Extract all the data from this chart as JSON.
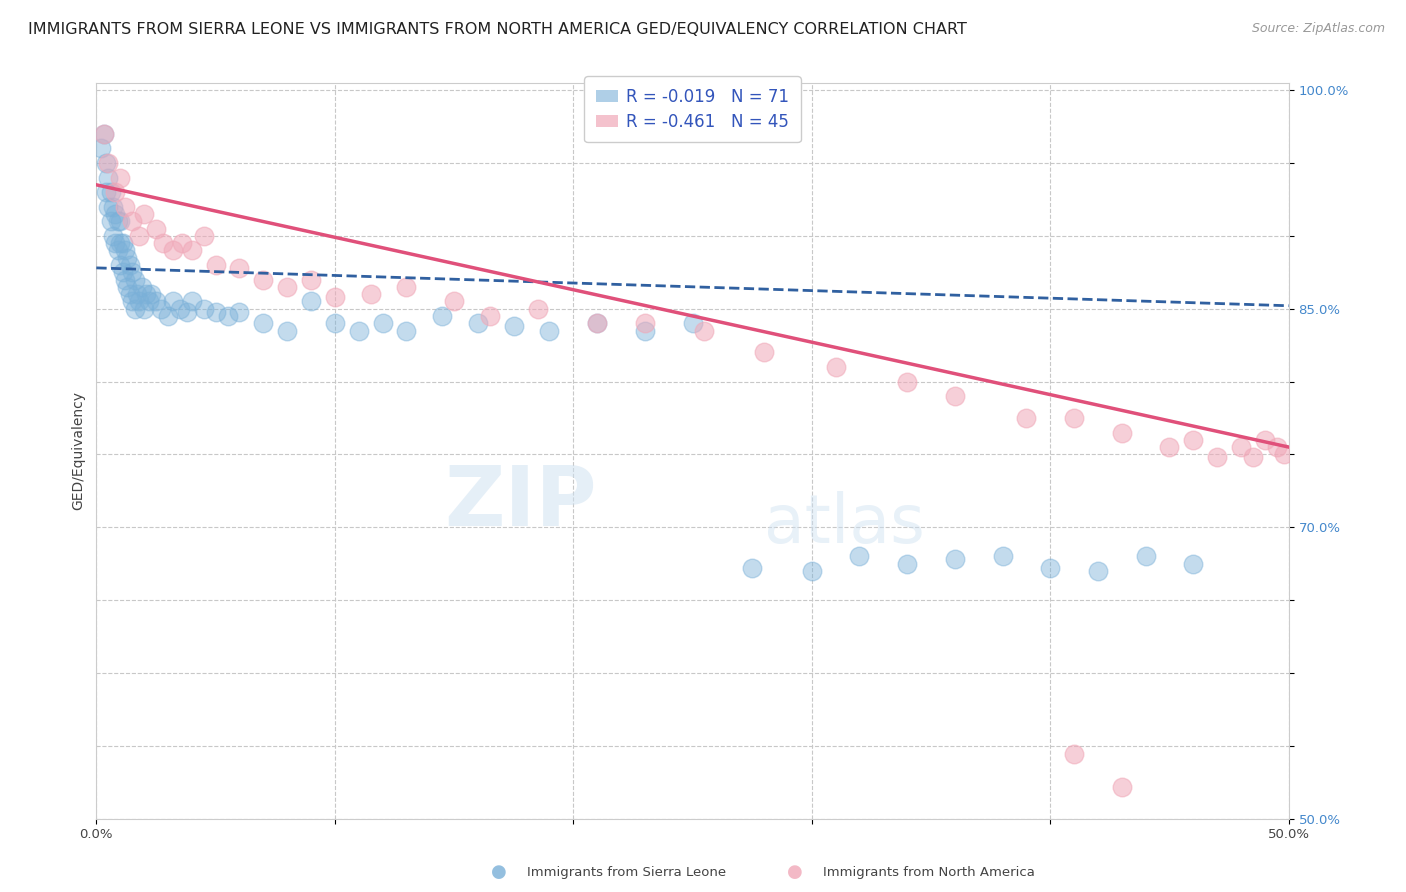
{
  "title": "IMMIGRANTS FROM SIERRA LEONE VS IMMIGRANTS FROM NORTH AMERICA GED/EQUIVALENCY CORRELATION CHART",
  "source": "Source: ZipAtlas.com",
  "ylabel": "GED/Equivalency",
  "xlim": [
    0.0,
    0.5
  ],
  "ylim": [
    0.5,
    1.005
  ],
  "xtick_positions": [
    0.0,
    0.1,
    0.2,
    0.3,
    0.4,
    0.5
  ],
  "xtick_labels": [
    "0.0%",
    "",
    "",
    "",
    "",
    "50.0%"
  ],
  "ytick_positions": [
    0.5,
    0.55,
    0.6,
    0.65,
    0.7,
    0.75,
    0.8,
    0.85,
    0.9,
    0.95,
    1.0
  ],
  "ytick_labels": [
    "50.0%",
    "",
    "",
    "",
    "70.0%",
    "",
    "",
    "85.0%",
    "",
    "",
    "100.0%"
  ],
  "legend_R_blue": "-0.019",
  "legend_N_blue": "71",
  "legend_R_pink": "-0.461",
  "legend_N_pink": "45",
  "blue_scatter_x": [
    0.002,
    0.003,
    0.004,
    0.004,
    0.005,
    0.005,
    0.006,
    0.006,
    0.007,
    0.007,
    0.008,
    0.008,
    0.009,
    0.009,
    0.01,
    0.01,
    0.01,
    0.011,
    0.011,
    0.012,
    0.012,
    0.013,
    0.013,
    0.014,
    0.014,
    0.015,
    0.015,
    0.016,
    0.016,
    0.017,
    0.018,
    0.019,
    0.02,
    0.021,
    0.022,
    0.023,
    0.025,
    0.027,
    0.03,
    0.032,
    0.035,
    0.038,
    0.04,
    0.045,
    0.05,
    0.055,
    0.06,
    0.07,
    0.08,
    0.09,
    0.1,
    0.11,
    0.12,
    0.13,
    0.145,
    0.16,
    0.175,
    0.19,
    0.21,
    0.23,
    0.25,
    0.275,
    0.3,
    0.32,
    0.34,
    0.36,
    0.38,
    0.4,
    0.42,
    0.44,
    0.46
  ],
  "blue_scatter_y": [
    0.96,
    0.97,
    0.93,
    0.95,
    0.92,
    0.94,
    0.91,
    0.93,
    0.9,
    0.92,
    0.895,
    0.915,
    0.89,
    0.91,
    0.88,
    0.895,
    0.91,
    0.875,
    0.895,
    0.87,
    0.89,
    0.865,
    0.885,
    0.86,
    0.88,
    0.855,
    0.875,
    0.85,
    0.87,
    0.86,
    0.855,
    0.865,
    0.85,
    0.86,
    0.855,
    0.86,
    0.855,
    0.85,
    0.845,
    0.855,
    0.85,
    0.848,
    0.855,
    0.85,
    0.848,
    0.845,
    0.848,
    0.84,
    0.835,
    0.855,
    0.84,
    0.835,
    0.84,
    0.835,
    0.845,
    0.84,
    0.838,
    0.835,
    0.84,
    0.835,
    0.84,
    0.672,
    0.67,
    0.68,
    0.675,
    0.678,
    0.68,
    0.672,
    0.67,
    0.68,
    0.675
  ],
  "pink_scatter_x": [
    0.003,
    0.005,
    0.008,
    0.01,
    0.012,
    0.015,
    0.018,
    0.02,
    0.025,
    0.028,
    0.032,
    0.036,
    0.04,
    0.045,
    0.05,
    0.06,
    0.07,
    0.08,
    0.09,
    0.1,
    0.115,
    0.13,
    0.15,
    0.165,
    0.185,
    0.21,
    0.23,
    0.255,
    0.28,
    0.31,
    0.34,
    0.36,
    0.39,
    0.41,
    0.43,
    0.45,
    0.46,
    0.47,
    0.48,
    0.485,
    0.49,
    0.495,
    0.498,
    0.41,
    0.43
  ],
  "pink_scatter_y": [
    0.97,
    0.95,
    0.93,
    0.94,
    0.92,
    0.91,
    0.9,
    0.915,
    0.905,
    0.895,
    0.89,
    0.895,
    0.89,
    0.9,
    0.88,
    0.878,
    0.87,
    0.865,
    0.87,
    0.858,
    0.86,
    0.865,
    0.855,
    0.845,
    0.85,
    0.84,
    0.84,
    0.835,
    0.82,
    0.81,
    0.8,
    0.79,
    0.775,
    0.775,
    0.765,
    0.755,
    0.76,
    0.748,
    0.755,
    0.748,
    0.76,
    0.755,
    0.75,
    0.544,
    0.522
  ],
  "blue_line_x": [
    0.0,
    0.5
  ],
  "blue_line_y": [
    0.878,
    0.852
  ],
  "pink_line_x": [
    0.0,
    0.5
  ],
  "pink_line_y": [
    0.935,
    0.755
  ],
  "watermark_zip": "ZIP",
  "watermark_atlas": "atlas",
  "background_color": "#ffffff",
  "plot_bg_color": "#ffffff",
  "grid_color": "#c8c8c8",
  "blue_dot_color": "#7ab0d8",
  "pink_dot_color": "#f0a8b8",
  "blue_line_color": "#3060a0",
  "pink_line_color": "#e0507a",
  "title_fontsize": 11.5,
  "source_fontsize": 9,
  "axis_label_fontsize": 10,
  "tick_fontsize": 9.5,
  "legend_fontsize": 12
}
